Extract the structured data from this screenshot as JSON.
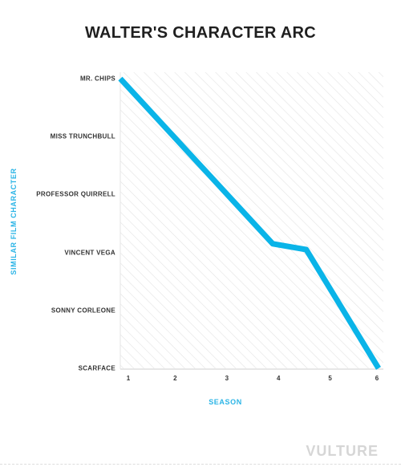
{
  "chart_data": {
    "type": "line",
    "title": "WALTER'S CHARACTER ARC",
    "xlabel": "SEASON",
    "ylabel": "SIMILAR FILM CHARACTER",
    "x_ticks": [
      "1",
      "2",
      "3",
      "4",
      "5",
      "6"
    ],
    "y_categories": [
      "MR. CHIPS",
      "MISS TRUNCHBULL",
      "PROFESSOR QUIRRELL",
      "VINCENT VEGA",
      "SONNY CORLEONE",
      "SCARFACE"
    ],
    "xlim": [
      1,
      6
    ],
    "ylim": [
      0,
      5
    ],
    "series": [
      {
        "x": [
          1,
          3.95,
          4.6,
          6
        ],
        "y": [
          0,
          2.85,
          2.95,
          5
        ]
      }
    ],
    "line_color": "#0ab4e8",
    "accent_color": "#2ab4e6",
    "background": "hatched-diagonal"
  },
  "branding": {
    "logo": "VULTURE"
  }
}
